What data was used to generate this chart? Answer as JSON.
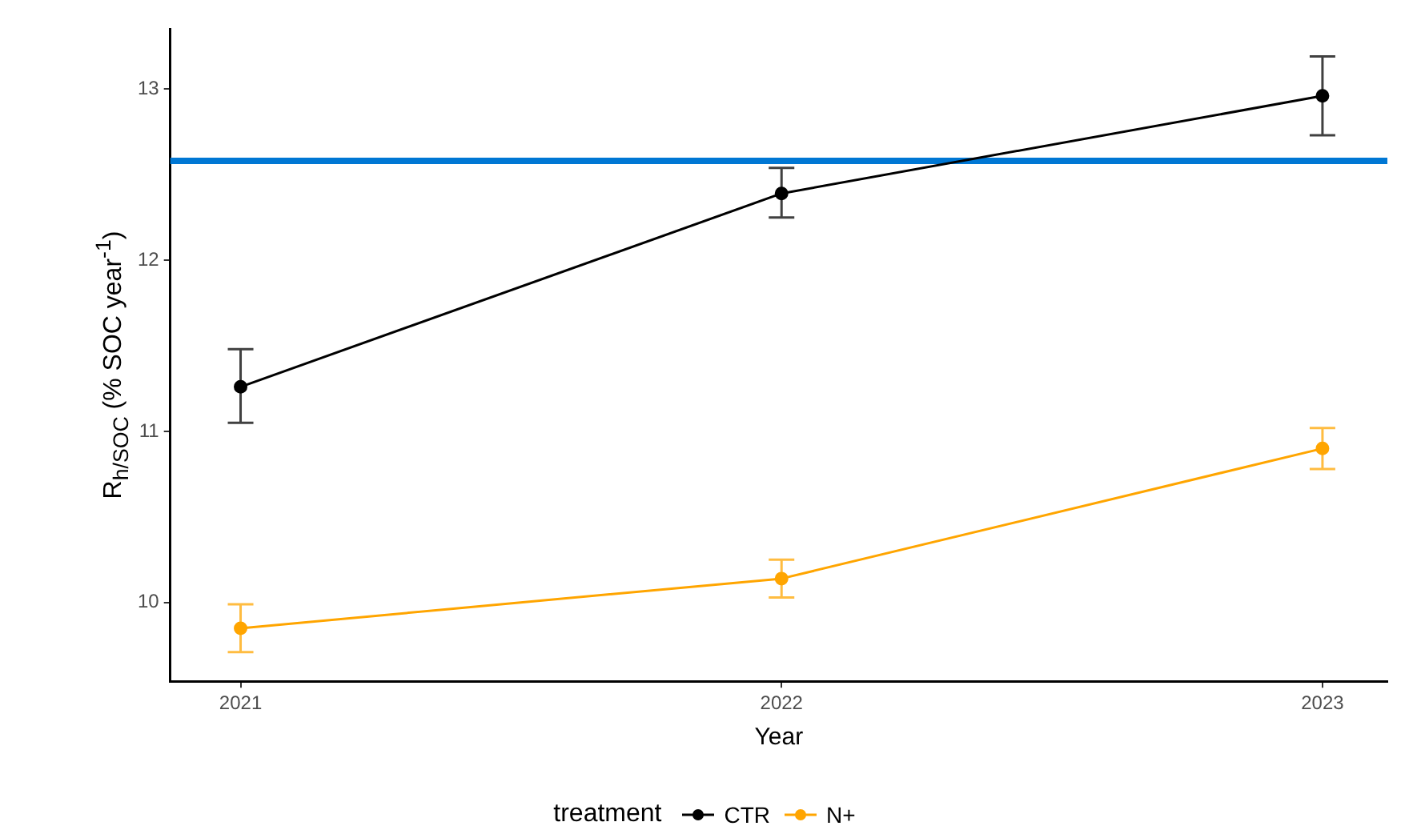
{
  "chart_data": {
    "type": "line",
    "xlabel": "Year",
    "ylabel": "R$_{h/SOC}$  (% SOC year$^{-1}$)",
    "legend_title": "treatment",
    "categories": [
      "2021",
      "2022",
      "2023"
    ],
    "series": [
      {
        "name": "CTR",
        "color": "#000000",
        "values": [
          11.26,
          12.39,
          12.96
        ],
        "errors": [
          [
            11.05,
            11.48
          ],
          [
            12.25,
            12.54
          ],
          [
            12.73,
            13.19
          ]
        ]
      },
      {
        "name": "N+",
        "color": "#ffa500",
        "values": [
          9.85,
          10.14,
          10.9
        ],
        "errors": [
          [
            9.71,
            9.99
          ],
          [
            10.03,
            10.25
          ],
          [
            10.78,
            11.02
          ]
        ]
      }
    ],
    "ylim": [
      9.54,
      13.35
    ],
    "yticks": [
      10,
      11,
      12,
      13
    ],
    "ref_lines": [
      {
        "axis": "y",
        "value": 12.58,
        "color": "#0077d4"
      }
    ],
    "grid": false,
    "legend": "bottom",
    "marker": "circle",
    "line_style": "solid"
  }
}
